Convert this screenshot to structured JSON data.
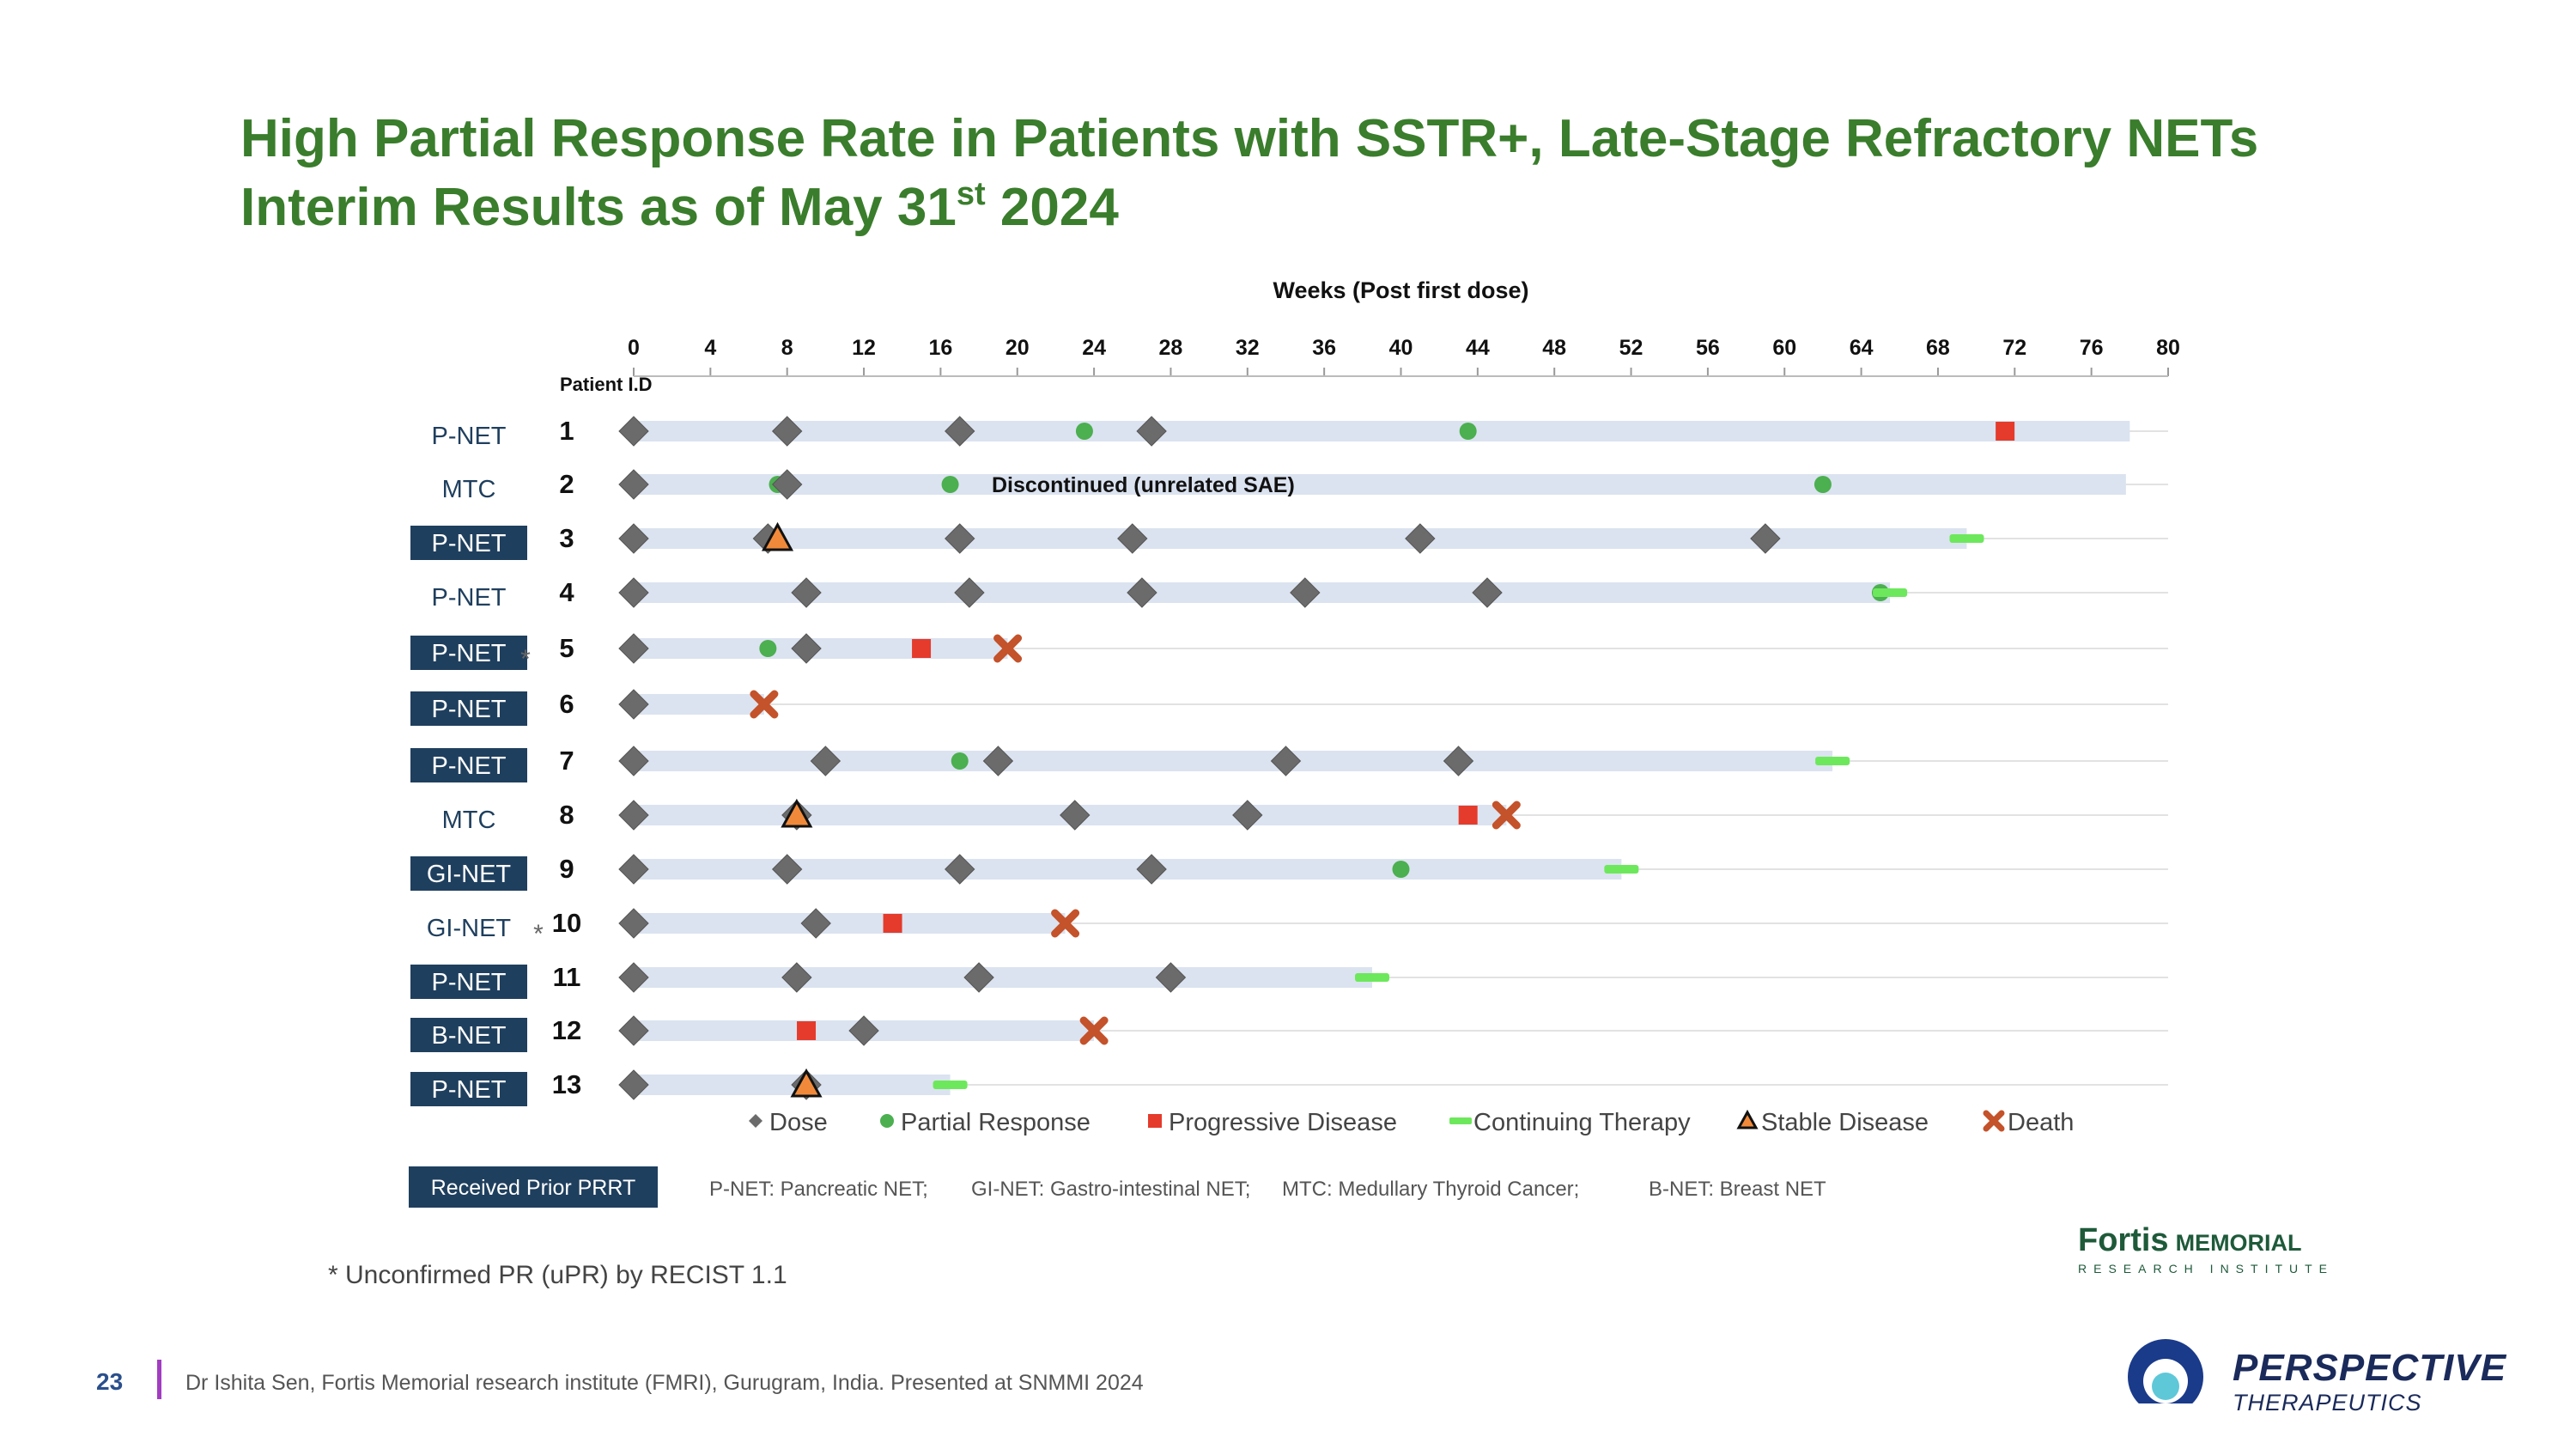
{
  "slide": {
    "title_line1": "High Partial Response Rate in Patients with SSTR+, Late-Stage Refractory NETs",
    "title_line2_pre": "Interim Results as of May 31",
    "title_line2_sup": "st",
    "title_line2_post": " 2024",
    "footnote": "* Unconfirmed PR (uPR) by RECIST 1.1",
    "page_number": "23",
    "footer_text": "Dr Ishita Sen, Fortis Memorial research institute (FMRI), Gurugram, India. Presented at SNMMI 2024",
    "fortis_logo_main": "Fortis",
    "fortis_logo_memorial": "MEMORIAL",
    "fortis_logo_sub": "RESEARCH INSTITUTE",
    "company_name": "PERSPECTIVE",
    "company_sub": "THERAPEUTICS"
  },
  "chart_data": {
    "type": "swimmer",
    "title": "Weeks (Post first dose)",
    "xlabel": "Weeks (Post first dose)",
    "ylabel": "Patient I.D",
    "xlim": [
      0,
      80
    ],
    "xticks": [
      0,
      4,
      8,
      12,
      16,
      20,
      24,
      28,
      32,
      36,
      40,
      44,
      48,
      52,
      56,
      60,
      64,
      68,
      72,
      76,
      80
    ],
    "patients": [
      {
        "id": "1",
        "type": "P-NET",
        "prior_prrt": false,
        "unconfirmed": false,
        "bar_end": 78,
        "dose": [
          0,
          8,
          17,
          27
        ],
        "partial_response": [
          23.5,
          43.5
        ],
        "progressive": [
          71.5
        ],
        "continuing": [],
        "stable": [],
        "death": [],
        "annotation": ""
      },
      {
        "id": "2",
        "type": "MTC",
        "prior_prrt": false,
        "unconfirmed": false,
        "bar_end": 77.8,
        "dose": [
          0,
          8
        ],
        "partial_response": [
          7.5,
          16.5,
          62
        ],
        "progressive": [],
        "continuing": [],
        "stable": [],
        "death": [],
        "annotation": "Discontinued (unrelated SAE)"
      },
      {
        "id": "3",
        "type": "P-NET",
        "prior_prrt": true,
        "unconfirmed": false,
        "bar_end": 69.5,
        "dose": [
          0,
          7,
          17,
          26,
          41,
          59
        ],
        "partial_response": [],
        "progressive": [],
        "continuing": [
          69.5
        ],
        "stable": [
          7.5
        ],
        "death": [],
        "annotation": ""
      },
      {
        "id": "4",
        "type": "P-NET",
        "prior_prrt": false,
        "unconfirmed": false,
        "bar_end": 65.5,
        "dose": [
          0,
          9,
          17.5,
          26.5,
          35,
          44.5
        ],
        "partial_response": [
          65
        ],
        "progressive": [],
        "continuing": [
          65.5
        ],
        "stable": [],
        "death": [],
        "annotation": ""
      },
      {
        "id": "5",
        "type": "P-NET",
        "prior_prrt": true,
        "unconfirmed": true,
        "bar_end": 19.5,
        "dose": [
          0,
          9
        ],
        "partial_response": [
          7
        ],
        "progressive": [
          15
        ],
        "continuing": [],
        "stable": [],
        "death": [
          19.5
        ],
        "annotation": ""
      },
      {
        "id": "6",
        "type": "P-NET",
        "prior_prrt": true,
        "unconfirmed": false,
        "bar_end": 6.8,
        "dose": [
          0
        ],
        "partial_response": [],
        "progressive": [],
        "continuing": [],
        "stable": [],
        "death": [
          6.8
        ],
        "annotation": ""
      },
      {
        "id": "7",
        "type": "P-NET",
        "prior_prrt": true,
        "unconfirmed": false,
        "bar_end": 62.5,
        "dose": [
          0,
          10,
          19,
          34,
          43
        ],
        "partial_response": [
          17
        ],
        "progressive": [],
        "continuing": [
          62.5
        ],
        "stable": [],
        "death": [],
        "annotation": ""
      },
      {
        "id": "8",
        "type": "MTC",
        "prior_prrt": false,
        "unconfirmed": false,
        "bar_end": 45.5,
        "dose": [
          0,
          8.5,
          23,
          32
        ],
        "partial_response": [],
        "progressive": [
          43.5
        ],
        "continuing": [],
        "stable": [
          8.5
        ],
        "death": [
          45.5
        ],
        "annotation": ""
      },
      {
        "id": "9",
        "type": "GI-NET",
        "prior_prrt": true,
        "unconfirmed": false,
        "bar_end": 51.5,
        "dose": [
          0,
          8,
          17,
          27
        ],
        "partial_response": [
          40
        ],
        "progressive": [],
        "continuing": [
          51.5
        ],
        "stable": [],
        "death": [],
        "annotation": ""
      },
      {
        "id": "10",
        "type": "GI-NET",
        "prior_prrt": false,
        "unconfirmed": true,
        "bar_end": 22.5,
        "dose": [
          0,
          9.5
        ],
        "partial_response": [],
        "progressive": [
          13.5
        ],
        "continuing": [],
        "stable": [],
        "death": [
          22.5
        ],
        "annotation": ""
      },
      {
        "id": "11",
        "type": "P-NET",
        "prior_prrt": true,
        "unconfirmed": false,
        "bar_end": 38.5,
        "dose": [
          0,
          8.5,
          18,
          28
        ],
        "partial_response": [],
        "progressive": [],
        "continuing": [
          38.5
        ],
        "stable": [],
        "death": [],
        "annotation": ""
      },
      {
        "id": "12",
        "type": "B-NET",
        "prior_prrt": true,
        "unconfirmed": false,
        "bar_end": 24,
        "dose": [
          0,
          12
        ],
        "partial_response": [],
        "progressive": [
          9
        ],
        "continuing": [],
        "stable": [],
        "death": [
          24
        ],
        "annotation": ""
      },
      {
        "id": "13",
        "type": "P-NET",
        "prior_prrt": true,
        "unconfirmed": false,
        "bar_end": 16.5,
        "dose": [
          0,
          9
        ],
        "partial_response": [],
        "progressive": [],
        "continuing": [
          16.5
        ],
        "stable": [
          9
        ],
        "death": [],
        "annotation": ""
      }
    ],
    "legend": [
      {
        "key": "dose",
        "label": "Dose"
      },
      {
        "key": "partial_response",
        "label": "Partial Response"
      },
      {
        "key": "progressive",
        "label": "Progressive Disease"
      },
      {
        "key": "continuing",
        "label": "Continuing Therapy"
      },
      {
        "key": "stable",
        "label": "Stable Disease"
      },
      {
        "key": "death",
        "label": "Death"
      }
    ],
    "prior_prrt_label": "Received Prior PRRT",
    "abbreviations": [
      "P-NET: Pancreatic NET;",
      "GI-NET: Gastro-intestinal NET;",
      "MTC: Medullary Thyroid Cancer;",
      "B-NET:  Breast NET"
    ],
    "colors": {
      "dose": "#6b6b6b",
      "partial_response": "#4caf50",
      "progressive": "#e53b2c",
      "continuing": "#6de85c",
      "stable": "#f08a3a",
      "death": "#c4522a",
      "bar": "#dbe3f0",
      "label_box": "#1f3f5e",
      "label_text": "#1f3f5e",
      "title_green": "#3a7d2c"
    }
  }
}
